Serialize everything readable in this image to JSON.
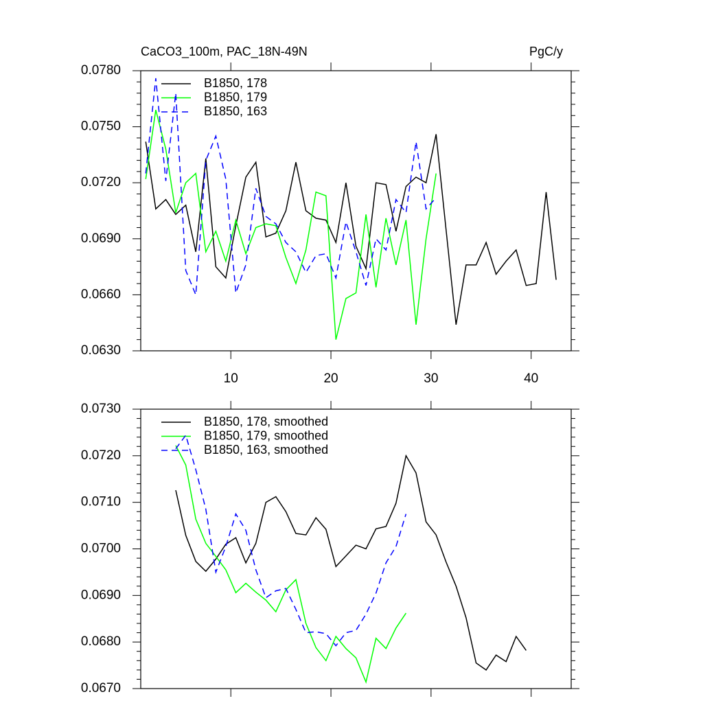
{
  "chart_data": [
    {
      "type": "line",
      "title": "CaCO3_100m, PAC_18N-49N",
      "units": "PgC/y",
      "xlim": [
        1,
        44
      ],
      "xticks": [
        10,
        20,
        30,
        40
      ],
      "show_xtick_labels": true,
      "ylim": [
        0.063,
        0.078
      ],
      "yticks": [
        {
          "value": 0.063,
          "label": "0.0630"
        },
        {
          "value": 0.066,
          "label": "0.0660"
        },
        {
          "value": 0.069,
          "label": "0.0690"
        },
        {
          "value": 0.072,
          "label": "0.0720"
        },
        {
          "value": 0.075,
          "label": "0.0750"
        },
        {
          "value": 0.078,
          "label": "0.0780"
        }
      ],
      "yminor": 5,
      "legend": "upper left",
      "x": [
        1.5,
        2.5,
        3.5,
        4.5,
        5.5,
        6.5,
        7.5,
        8.5,
        9.5,
        10.5,
        11.5,
        12.5,
        13.5,
        14.5,
        15.5,
        16.5,
        17.5,
        18.5,
        19.5,
        20.5,
        21.5,
        22.5,
        23.5,
        24.5,
        25.5,
        26.5,
        27.5,
        28.5,
        29.5,
        30.5,
        31.5,
        32.5,
        33.5,
        34.5,
        35.5,
        36.5,
        37.5,
        38.5,
        39.5,
        40.5,
        41.5,
        42.5
      ],
      "series": [
        {
          "name": "B1850, 178",
          "color": "#000000",
          "dashed": false,
          "values": [
            0.0742,
            0.0706,
            0.0711,
            0.0703,
            0.0708,
            0.0683,
            0.0733,
            0.0675,
            0.0669,
            0.0697,
            0.0723,
            0.0731,
            0.0691,
            0.0693,
            0.0705,
            0.0731,
            0.0705,
            0.0701,
            0.07,
            0.0688,
            0.072,
            0.0686,
            0.0674,
            0.072,
            0.0719,
            0.0694,
            0.0718,
            0.0723,
            0.072,
            0.0746,
            0.0695,
            0.0644,
            0.0676,
            0.0676,
            0.0688,
            0.0671,
            0.0678,
            0.0684,
            0.0665,
            0.0666,
            0.0715,
            0.0668
          ]
        },
        {
          "name": "B1850, 179",
          "color": "#00ff00",
          "dashed": false,
          "values": [
            0.0722,
            0.0759,
            0.0738,
            0.0704,
            0.072,
            0.0725,
            0.0683,
            0.0694,
            0.0678,
            0.07,
            0.0682,
            0.0696,
            0.0698,
            0.0697,
            0.068,
            0.0666,
            0.0684,
            0.0715,
            0.0713,
            0.0636,
            0.0658,
            0.0661,
            0.0703,
            0.0664,
            0.0701,
            0.0676,
            0.07,
            0.0644,
            0.069,
            0.0725,
            null,
            null,
            null,
            null,
            null,
            null,
            null,
            null,
            null,
            null,
            null,
            null
          ]
        },
        {
          "name": "B1850, 163",
          "color": "#0000ff",
          "dashed": true,
          "values": [
            0.0725,
            0.0776,
            0.0721,
            0.0768,
            0.0673,
            0.066,
            0.0732,
            0.0745,
            0.0722,
            0.0661,
            0.0676,
            0.0717,
            0.0702,
            0.0698,
            0.0688,
            0.0683,
            0.0672,
            0.0681,
            0.0682,
            0.0669,
            0.0699,
            0.0683,
            0.0665,
            0.069,
            0.0684,
            0.0711,
            0.0704,
            0.0742,
            0.0706,
            0.0712,
            null,
            null,
            null,
            null,
            null,
            null,
            null,
            null,
            null,
            null,
            null,
            null
          ]
        }
      ]
    },
    {
      "type": "line",
      "xlim": [
        1,
        44
      ],
      "xticks": [
        10,
        20,
        30,
        40
      ],
      "show_xtick_labels": false,
      "ylim": [
        0.067,
        0.073
      ],
      "yticks": [
        {
          "value": 0.067,
          "label": "0.0670"
        },
        {
          "value": 0.068,
          "label": "0.0680"
        },
        {
          "value": 0.069,
          "label": "0.0690"
        },
        {
          "value": 0.07,
          "label": "0.0700"
        },
        {
          "value": 0.071,
          "label": "0.0710"
        },
        {
          "value": 0.072,
          "label": "0.0720"
        },
        {
          "value": 0.073,
          "label": "0.0730"
        }
      ],
      "yminor": 5,
      "legend": "upper left",
      "x": [
        4.5,
        5.5,
        6.5,
        7.5,
        8.5,
        9.5,
        10.5,
        11.5,
        12.5,
        13.5,
        14.5,
        15.5,
        16.5,
        17.5,
        18.5,
        19.5,
        20.5,
        21.5,
        22.5,
        23.5,
        24.5,
        25.5,
        26.5,
        27.5,
        28.5,
        29.5,
        30.5,
        31.5,
        32.5,
        33.5,
        34.5,
        35.5,
        36.5,
        37.5,
        38.5,
        39.5
      ],
      "series": [
        {
          "name": "B1850, 178, smoothed",
          "color": "#000000",
          "dashed": false,
          "values": [
            0.07126,
            0.07029,
            0.06973,
            0.06952,
            0.06978,
            0.0701,
            0.07024,
            0.0697,
            0.07012,
            0.071,
            0.07112,
            0.0708,
            0.07033,
            0.0703,
            0.07067,
            0.07042,
            0.06962,
            0.06985,
            0.07008,
            0.07,
            0.07043,
            0.07048,
            0.07098,
            0.072,
            0.07163,
            0.07058,
            0.0703,
            0.06972,
            0.0692,
            0.06852,
            0.06755,
            0.0674,
            0.06772,
            0.06758,
            0.06812,
            0.06782
          ]
        },
        {
          "name": "B1850, 179, smoothed",
          "color": "#00ff00",
          "dashed": false,
          "values": [
            0.07222,
            0.0718,
            0.07064,
            0.07012,
            0.06984,
            0.06955,
            0.06906,
            0.06926,
            0.06907,
            0.0689,
            0.06865,
            0.06912,
            0.06934,
            0.0684,
            0.06788,
            0.0676,
            0.06812,
            0.06786,
            0.06766,
            0.06714,
            0.06808,
            0.06786,
            0.0683,
            0.06862,
            null,
            null,
            null,
            null,
            null,
            null,
            null,
            null,
            null,
            null,
            null,
            null
          ]
        },
        {
          "name": "B1850, 163, smoothed",
          "color": "#0000ff",
          "dashed": true,
          "values": [
            0.07215,
            0.07244,
            0.0717,
            0.07085,
            0.0695,
            0.07005,
            0.07075,
            0.0704,
            0.06955,
            0.06895,
            0.0691,
            0.06915,
            0.0687,
            0.0682,
            0.06822,
            0.06818,
            0.06792,
            0.0682,
            0.06825,
            0.0686,
            0.06905,
            0.0697,
            0.07005,
            0.07075,
            null,
            null,
            null,
            null,
            null,
            null,
            null,
            null,
            null,
            null,
            null,
            null
          ]
        }
      ]
    }
  ]
}
